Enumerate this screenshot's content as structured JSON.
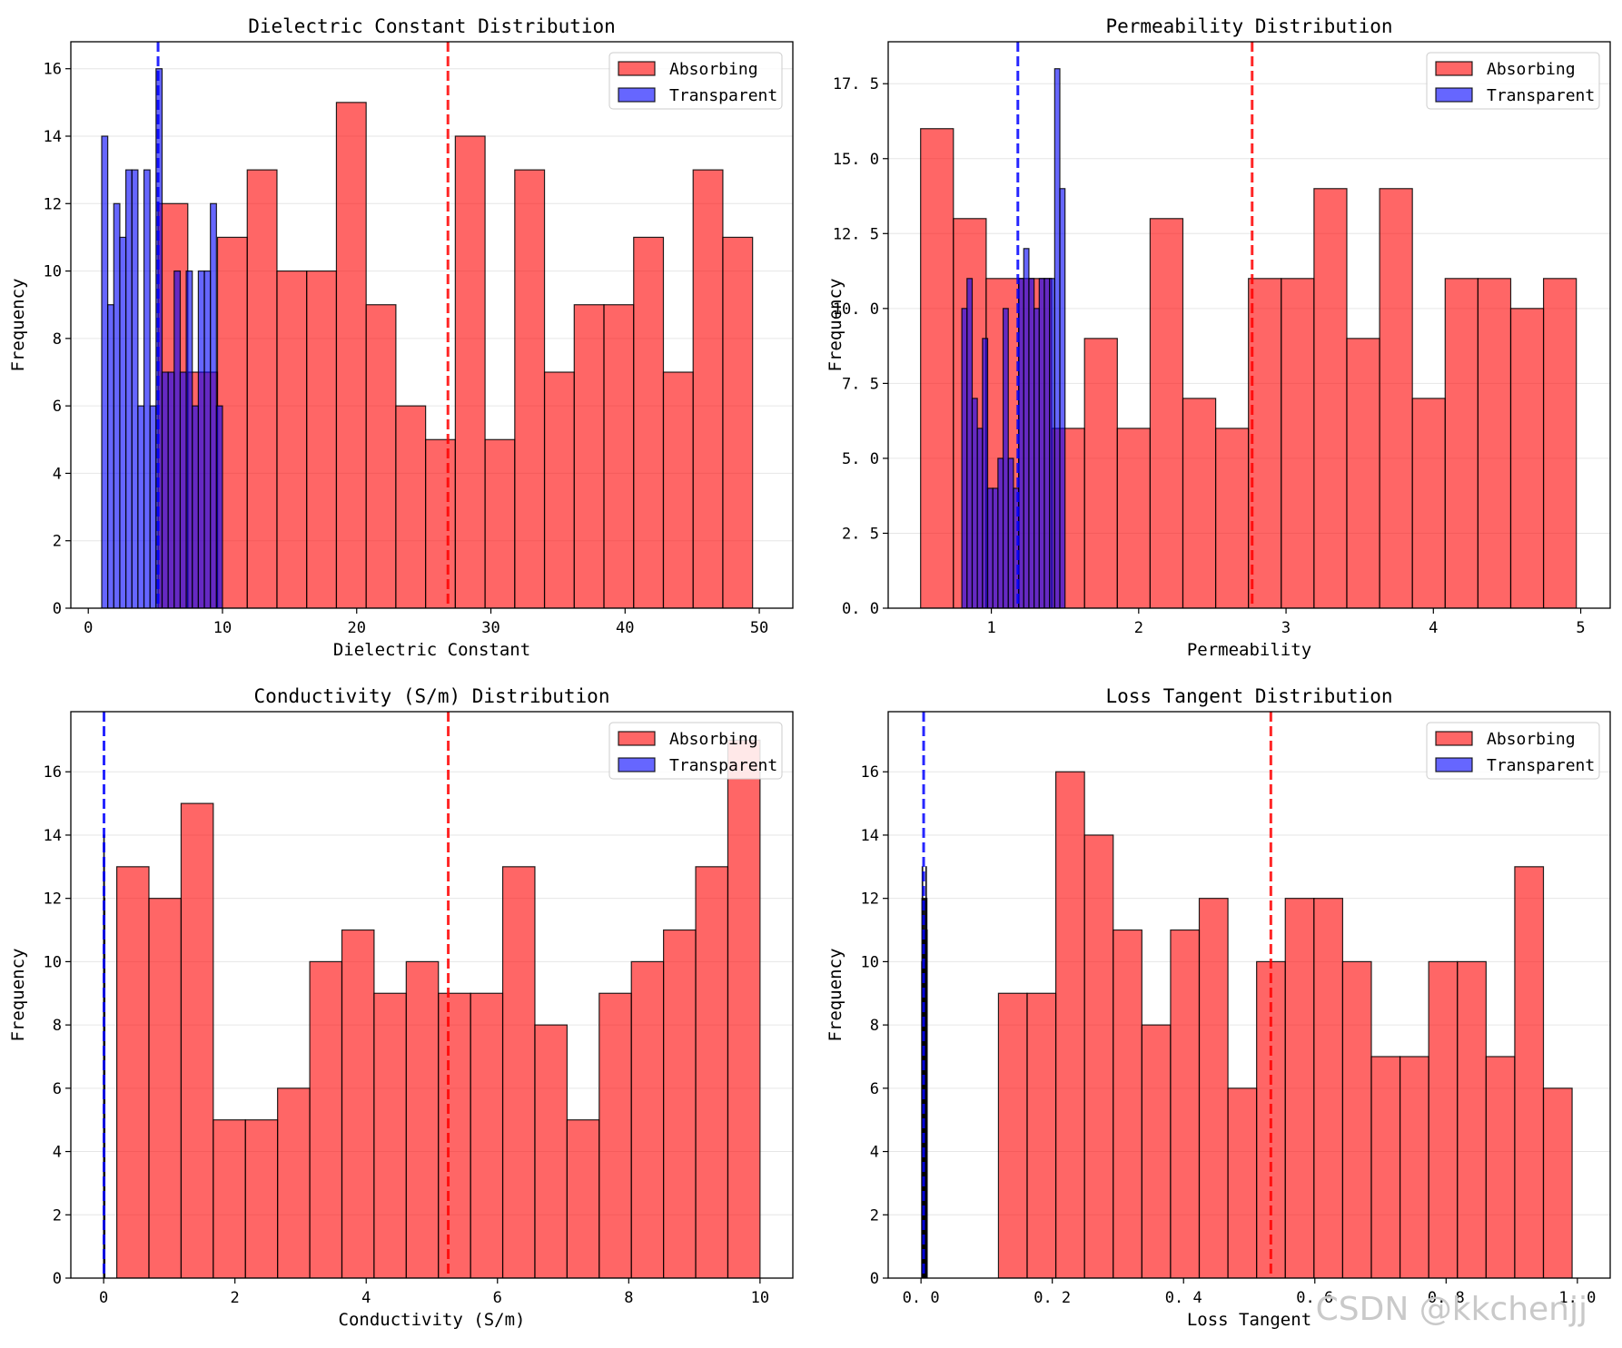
{
  "watermark": "CSDN @kkchenjj",
  "colors": {
    "absorbing": "#ff0000",
    "transparent": "#0000ff",
    "edge": "#000000",
    "grid": "#e6e6e6"
  },
  "chart_data": [
    {
      "type": "bar",
      "title": "Dielectric Constant Distribution",
      "xlabel": "Dielectric Constant",
      "ylabel": "Frequency",
      "xlim": [
        -1.3,
        52.5
      ],
      "ylim": [
        0,
        16.8
      ],
      "xticks": [
        0,
        10,
        20,
        30,
        40,
        50
      ],
      "xtick_labels": [
        "0",
        "10",
        "20",
        "30",
        "40",
        "50"
      ],
      "yticks": [
        0,
        2,
        4,
        6,
        8,
        10,
        12,
        14,
        16
      ],
      "ytick_labels": [
        "0",
        "2",
        "4",
        "6",
        "8",
        "10",
        "12",
        "14",
        "16"
      ],
      "grid": "y",
      "legend": {
        "position": "top-right",
        "entries": [
          "Absorbing",
          "Transparent"
        ]
      },
      "series": [
        {
          "name": "Absorbing",
          "bin_start": 5.2,
          "bin_end": 49.5,
          "counts": [
            12,
            7,
            11,
            13,
            10,
            10,
            15,
            9,
            6,
            5,
            14,
            5,
            13,
            7,
            9,
            9,
            11,
            7,
            13,
            11
          ],
          "mean": 26.8
        },
        {
          "name": "Transparent",
          "bin_start": 1.0,
          "bin_end": 10.0,
          "counts": [
            14,
            9,
            12,
            11,
            13,
            13,
            6,
            13,
            6,
            16,
            7,
            7,
            10,
            7,
            10,
            6,
            10,
            10,
            12,
            6
          ],
          "mean": 5.2
        }
      ]
    },
    {
      "type": "bar",
      "title": "Permeability Distribution",
      "xlabel": "Permeability",
      "ylabel": "Frequency",
      "xlim": [
        0.3,
        5.2
      ],
      "ylim": [
        0,
        18.9
      ],
      "xticks": [
        1,
        2,
        3,
        4,
        5
      ],
      "xtick_labels": [
        "1",
        "2",
        "3",
        "4",
        "5"
      ],
      "yticks": [
        0,
        2.5,
        5.0,
        7.5,
        10.0,
        12.5,
        15.0,
        17.5
      ],
      "ytick_labels": [
        "0. 0",
        "2. 5",
        "5. 0",
        "7. 5",
        "10. 0",
        "12. 5",
        "15. 0",
        "17. 5"
      ],
      "grid": "y",
      "legend": {
        "position": "top-right",
        "entries": [
          "Absorbing",
          "Transparent"
        ]
      },
      "series": [
        {
          "name": "Absorbing",
          "bin_start": 0.52,
          "bin_end": 4.97,
          "counts": [
            16,
            13,
            11,
            11,
            6,
            9,
            6,
            13,
            7,
            6,
            11,
            11,
            14,
            9,
            14,
            7,
            11,
            11,
            10,
            11
          ],
          "mean": 2.77
        },
        {
          "name": "Transparent",
          "bin_start": 0.8,
          "bin_end": 1.5,
          "counts": [
            10,
            11,
            7,
            6,
            9,
            4,
            4,
            5,
            10,
            5,
            4,
            11,
            12,
            11,
            10,
            11,
            11,
            11,
            18,
            14
          ],
          "mean": 1.18
        }
      ]
    },
    {
      "type": "bar",
      "title": "Conductivity (S/m) Distribution",
      "xlabel": "Conductivity (S/m)",
      "ylabel": "Frequency",
      "xlim": [
        -0.5,
        10.5
      ],
      "ylim": [
        0,
        17.9
      ],
      "xticks": [
        0,
        2,
        4,
        6,
        8,
        10
      ],
      "xtick_labels": [
        "0",
        "2",
        "4",
        "6",
        "8",
        "10"
      ],
      "yticks": [
        0,
        2,
        4,
        6,
        8,
        10,
        12,
        14,
        16
      ],
      "ytick_labels": [
        "0",
        "2",
        "4",
        "6",
        "8",
        "10",
        "12",
        "14",
        "16"
      ],
      "grid": "y",
      "legend": {
        "position": "top-right",
        "entries": [
          "Absorbing",
          "Transparent"
        ]
      },
      "series": [
        {
          "name": "Absorbing",
          "bin_start": 0.2,
          "bin_end": 10.0,
          "counts": [
            13,
            12,
            15,
            5,
            5,
            6,
            10,
            11,
            9,
            10,
            9,
            9,
            13,
            8,
            5,
            9,
            10,
            11,
            13,
            17
          ],
          "mean": 5.25
        },
        {
          "name": "Transparent",
          "bin_start": 0.0,
          "bin_end": 0.01,
          "counts": [
            12,
            10,
            14,
            8,
            9,
            6,
            13,
            11,
            9,
            10,
            7,
            12,
            8,
            9,
            10,
            11,
            9,
            8,
            10,
            12
          ],
          "mean": 0.005
        }
      ]
    },
    {
      "type": "bar",
      "title": "Loss Tangent Distribution",
      "xlabel": "Loss Tangent",
      "ylabel": "Frequency",
      "xlim": [
        -0.05,
        1.05
      ],
      "ylim": [
        0,
        17.9
      ],
      "xticks": [
        0.0,
        0.2,
        0.4,
        0.6,
        0.8,
        1.0
      ],
      "xtick_labels": [
        "0. 0",
        "0. 2",
        "0. 4",
        "0. 6",
        "0. 8",
        "1. 0"
      ],
      "yticks": [
        0,
        2,
        4,
        6,
        8,
        10,
        12,
        14,
        16
      ],
      "ytick_labels": [
        "0",
        "2",
        "4",
        "6",
        "8",
        "10",
        "12",
        "14",
        "16"
      ],
      "grid": "y",
      "legend": {
        "position": "top-right",
        "entries": [
          "Absorbing",
          "Transparent"
        ]
      },
      "series": [
        {
          "name": "Absorbing",
          "bin_start": 0.118,
          "bin_end": 0.992,
          "counts": [
            9,
            9,
            16,
            14,
            11,
            8,
            11,
            12,
            6,
            10,
            12,
            12,
            10,
            7,
            7,
            10,
            10,
            7,
            13,
            6
          ],
          "mean": 0.533
        },
        {
          "name": "Transparent",
          "bin_start": 0.001,
          "bin_end": 0.009,
          "counts": [
            10,
            12,
            13,
            9,
            11,
            8,
            10,
            12,
            11,
            9,
            10,
            8,
            12,
            11,
            9,
            10,
            13,
            10,
            12,
            11
          ],
          "mean": 0.004
        }
      ]
    }
  ]
}
